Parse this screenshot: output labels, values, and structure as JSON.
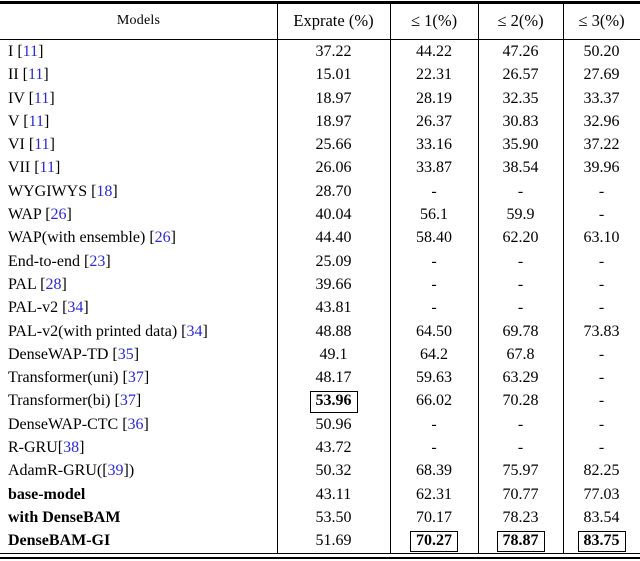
{
  "colors": {
    "citation": "#2a2ad2",
    "text": "#000000",
    "background": "#ffffff"
  },
  "table": {
    "headers": [
      "Models",
      "Exprate (%)",
      "≤ 1(%)",
      "≤ 2(%)",
      "≤ 3(%)"
    ],
    "rows": [
      {
        "model": {
          "pre": "I ",
          "cite": "11",
          "post": ""
        },
        "cells": [
          {
            "t": "37.22"
          },
          {
            "t": "44.22"
          },
          {
            "t": "47.26"
          },
          {
            "t": "50.20"
          }
        ]
      },
      {
        "model": {
          "pre": "II ",
          "cite": "11",
          "post": ""
        },
        "cells": [
          {
            "t": "15.01"
          },
          {
            "t": "22.31"
          },
          {
            "t": "26.57"
          },
          {
            "t": "27.69"
          }
        ]
      },
      {
        "model": {
          "pre": "IV ",
          "cite": "11",
          "post": ""
        },
        "cells": [
          {
            "t": "18.97"
          },
          {
            "t": "28.19"
          },
          {
            "t": "32.35"
          },
          {
            "t": "33.37"
          }
        ]
      },
      {
        "model": {
          "pre": "V ",
          "cite": "11",
          "post": ""
        },
        "cells": [
          {
            "t": "18.97"
          },
          {
            "t": "26.37"
          },
          {
            "t": "30.83"
          },
          {
            "t": "32.96"
          }
        ]
      },
      {
        "model": {
          "pre": "VI ",
          "cite": "11",
          "post": ""
        },
        "cells": [
          {
            "t": "25.66"
          },
          {
            "t": "33.16"
          },
          {
            "t": "35.90"
          },
          {
            "t": "37.22"
          }
        ]
      },
      {
        "model": {
          "pre": "VII ",
          "cite": "11",
          "post": ""
        },
        "cells": [
          {
            "t": "26.06"
          },
          {
            "t": "33.87"
          },
          {
            "t": "38.54"
          },
          {
            "t": "39.96"
          }
        ]
      },
      {
        "model": {
          "pre": "WYGIWYS ",
          "cite": "18",
          "post": ""
        },
        "cells": [
          {
            "t": "28.70"
          },
          {
            "t": "-"
          },
          {
            "t": "-"
          },
          {
            "t": "-"
          }
        ]
      },
      {
        "model": {
          "pre": "WAP ",
          "cite": "26",
          "post": ""
        },
        "cells": [
          {
            "t": "40.04"
          },
          {
            "t": "56.1"
          },
          {
            "t": "59.9"
          },
          {
            "t": "-"
          }
        ]
      },
      {
        "model": {
          "pre": "WAP(with ensemble) ",
          "cite": "26",
          "post": ""
        },
        "cells": [
          {
            "t": "44.40"
          },
          {
            "t": "58.40"
          },
          {
            "t": "62.20"
          },
          {
            "t": "63.10"
          }
        ]
      },
      {
        "model": {
          "pre": "End-to-end ",
          "cite": "23",
          "post": ""
        },
        "cells": [
          {
            "t": "25.09"
          },
          {
            "t": "-"
          },
          {
            "t": "-"
          },
          {
            "t": "-"
          }
        ]
      },
      {
        "model": {
          "pre": "PAL ",
          "cite": "28",
          "post": ""
        },
        "cells": [
          {
            "t": "39.66"
          },
          {
            "t": "-"
          },
          {
            "t": "-"
          },
          {
            "t": "-"
          }
        ]
      },
      {
        "model": {
          "pre": "PAL-v2 ",
          "cite": "34",
          "post": ""
        },
        "cells": [
          {
            "t": "43.81"
          },
          {
            "t": "-"
          },
          {
            "t": "-"
          },
          {
            "t": "-"
          }
        ]
      },
      {
        "model": {
          "pre": "PAL-v2(with printed data) ",
          "cite": "34",
          "post": ""
        },
        "cells": [
          {
            "t": "48.88"
          },
          {
            "t": "64.50"
          },
          {
            "t": "69.78"
          },
          {
            "t": "73.83"
          }
        ]
      },
      {
        "model": {
          "pre": "DenseWAP-TD ",
          "cite": "35",
          "post": ""
        },
        "cells": [
          {
            "t": "49.1"
          },
          {
            "t": "64.2"
          },
          {
            "t": "67.8"
          },
          {
            "t": "-"
          }
        ]
      },
      {
        "model": {
          "pre": "Transformer(uni) ",
          "cite": "37",
          "post": ""
        },
        "cells": [
          {
            "t": "48.17"
          },
          {
            "t": "59.63"
          },
          {
            "t": "63.29"
          },
          {
            "t": "-"
          }
        ]
      },
      {
        "model": {
          "pre": "Transformer(bi) ",
          "cite": "37",
          "post": ""
        },
        "cells": [
          {
            "t": "53.96",
            "bold": true,
            "boxed": true
          },
          {
            "t": "66.02"
          },
          {
            "t": "70.28"
          },
          {
            "t": "-"
          }
        ]
      },
      {
        "model": {
          "pre": "DenseWAP-CTC ",
          "cite": "36",
          "post": ""
        },
        "cells": [
          {
            "t": "50.96"
          },
          {
            "t": "-"
          },
          {
            "t": "-"
          },
          {
            "t": "-"
          }
        ]
      },
      {
        "model": {
          "pre": "R-GRU",
          "cite": "38",
          "post": ""
        },
        "cells": [
          {
            "t": "43.72"
          },
          {
            "t": "-"
          },
          {
            "t": "-"
          },
          {
            "t": "-"
          }
        ]
      },
      {
        "model": {
          "pre": "AdamR-GRU(",
          "cite": "39",
          "post": ")"
        },
        "cells": [
          {
            "t": "50.32"
          },
          {
            "t": "68.39"
          },
          {
            "t": "75.97"
          },
          {
            "t": "82.25"
          }
        ]
      },
      {
        "model": {
          "pre": "base-model",
          "cite": "",
          "post": "",
          "bold": true
        },
        "cells": [
          {
            "t": "43.11"
          },
          {
            "t": "62.31"
          },
          {
            "t": "70.77"
          },
          {
            "t": "77.03"
          }
        ]
      },
      {
        "model": {
          "pre": "with DenseBAM",
          "cite": "",
          "post": "",
          "bold": true
        },
        "cells": [
          {
            "t": "53.50"
          },
          {
            "t": "70.17"
          },
          {
            "t": "78.23"
          },
          {
            "t": "83.54"
          }
        ]
      },
      {
        "model": {
          "pre": "DenseBAM-GI",
          "cite": "",
          "post": "",
          "bold": true
        },
        "cells": [
          {
            "t": "51.69"
          },
          {
            "t": "70.27",
            "bold": true,
            "boxed": true
          },
          {
            "t": "78.87",
            "bold": true,
            "boxed": true
          },
          {
            "t": "83.75",
            "bold": true,
            "boxed": true
          }
        ]
      }
    ]
  }
}
